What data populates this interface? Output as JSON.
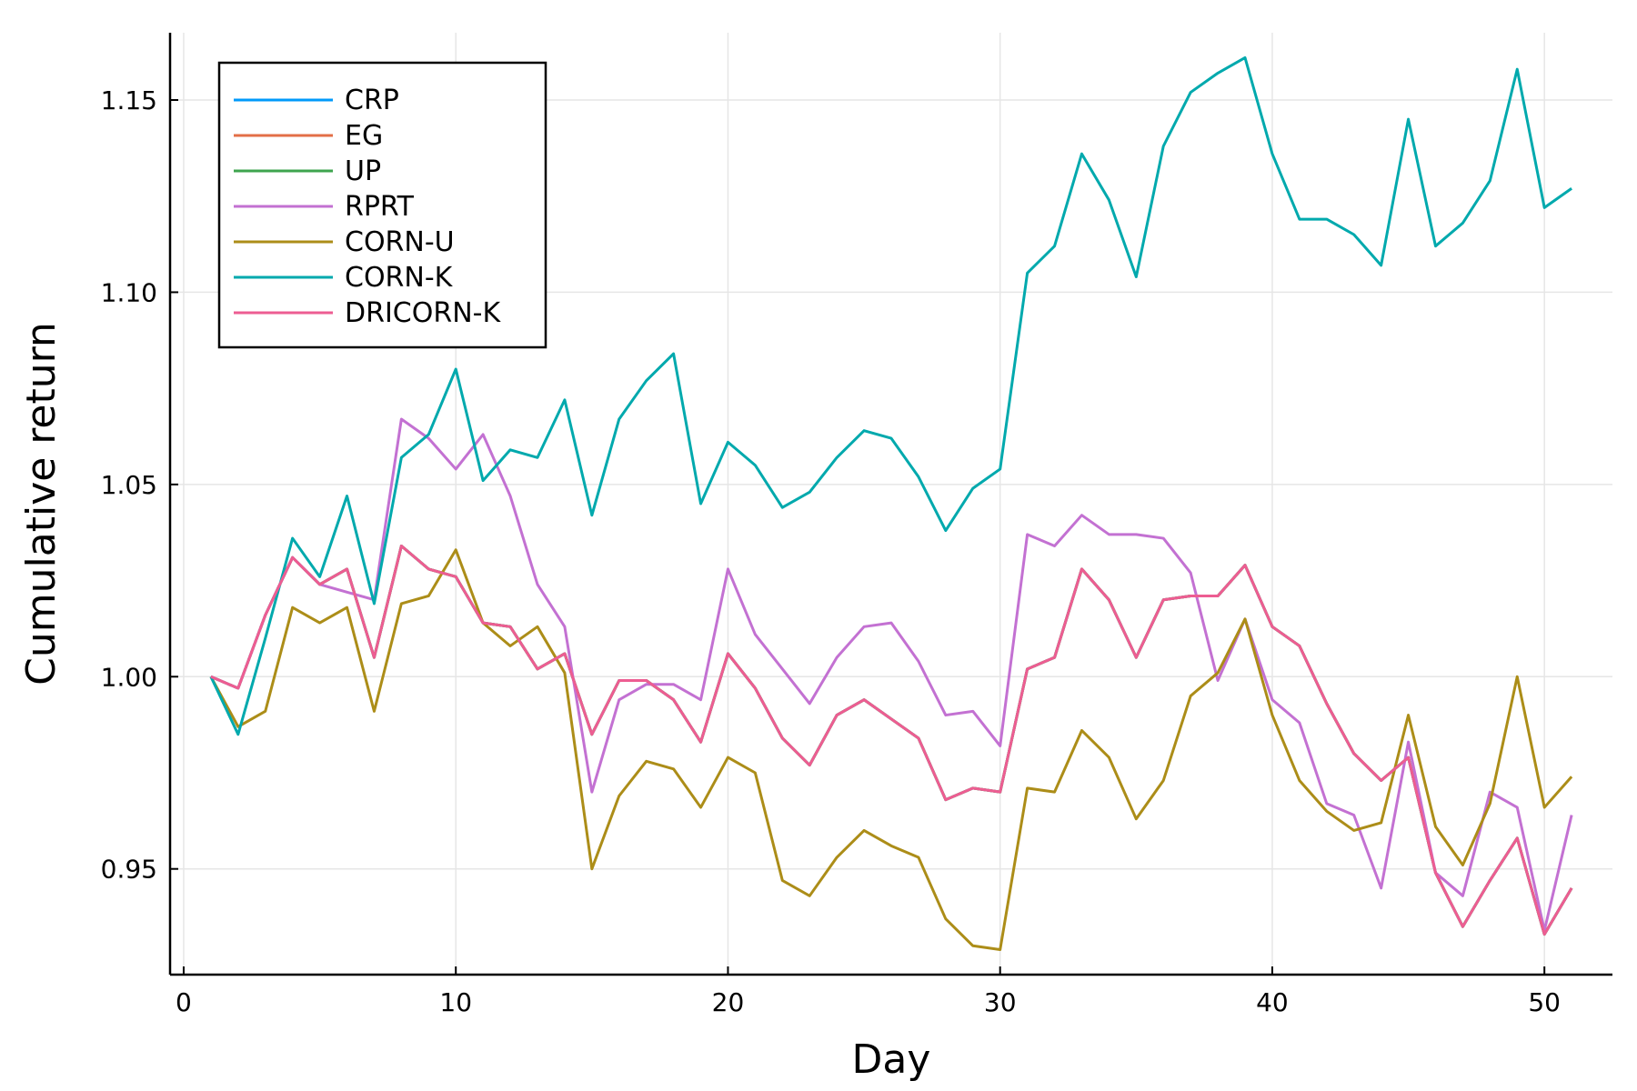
{
  "chart_data": {
    "type": "line",
    "xlabel": "Day",
    "ylabel": "Cumulative return",
    "xlim": [
      -0.5,
      52.5
    ],
    "ylim": [
      0.9225,
      1.1675
    ],
    "xticks": [
      0,
      10,
      20,
      30,
      40,
      50
    ],
    "xtick_labels": [
      "0",
      "10",
      "20",
      "30",
      "40",
      "50"
    ],
    "yticks": [
      0.95,
      1.0,
      1.05,
      1.1,
      1.15
    ],
    "ytick_labels": [
      "0.95",
      "1.00",
      "1.05",
      "1.10",
      "1.15"
    ],
    "grid": true,
    "legend_position": "top-left",
    "x": [
      1,
      2,
      3,
      4,
      5,
      6,
      7,
      8,
      9,
      10,
      11,
      12,
      13,
      14,
      15,
      16,
      17,
      18,
      19,
      20,
      21,
      22,
      23,
      24,
      25,
      26,
      27,
      28,
      29,
      30,
      31,
      32,
      33,
      34,
      35,
      36,
      37,
      38,
      39,
      40,
      41,
      42,
      43,
      44,
      45,
      46,
      47,
      48,
      49,
      50,
      51
    ],
    "series": [
      {
        "name": "CRP",
        "color": "#009AFA",
        "values": [
          1.0,
          0.997,
          1.016,
          1.031,
          1.024,
          1.028,
          1.005,
          1.034,
          1.028,
          1.026,
          1.014,
          1.013,
          1.002,
          1.006,
          0.985,
          0.999,
          0.999,
          0.994,
          0.983,
          1.006,
          0.997,
          0.984,
          0.977,
          0.99,
          0.994,
          0.989,
          0.984,
          0.968,
          0.971,
          0.97,
          1.002,
          1.005,
          1.028,
          1.02,
          1.005,
          1.02,
          1.021,
          1.021,
          1.029,
          1.013,
          1.008,
          0.993,
          0.98,
          0.973,
          0.979,
          0.949,
          0.935,
          0.947,
          0.958,
          0.933,
          0.945
        ]
      },
      {
        "name": "EG",
        "color": "#E36F47",
        "values": [
          1.0,
          0.997,
          1.016,
          1.031,
          1.024,
          1.028,
          1.005,
          1.034,
          1.028,
          1.026,
          1.014,
          1.013,
          1.002,
          1.006,
          0.985,
          0.999,
          0.999,
          0.994,
          0.983,
          1.006,
          0.997,
          0.984,
          0.977,
          0.99,
          0.994,
          0.989,
          0.984,
          0.968,
          0.971,
          0.97,
          1.002,
          1.005,
          1.028,
          1.02,
          1.005,
          1.02,
          1.021,
          1.021,
          1.029,
          1.013,
          1.008,
          0.993,
          0.98,
          0.973,
          0.979,
          0.949,
          0.935,
          0.947,
          0.958,
          0.933,
          0.945
        ]
      },
      {
        "name": "UP",
        "color": "#3EA44E",
        "values": [
          1.0,
          0.997,
          1.016,
          1.031,
          1.024,
          1.028,
          1.005,
          1.034,
          1.028,
          1.026,
          1.014,
          1.013,
          1.002,
          1.006,
          0.985,
          0.999,
          0.999,
          0.994,
          0.983,
          1.006,
          0.997,
          0.984,
          0.977,
          0.99,
          0.994,
          0.989,
          0.984,
          0.968,
          0.971,
          0.97,
          1.002,
          1.005,
          1.028,
          1.02,
          1.005,
          1.02,
          1.021,
          1.021,
          1.029,
          1.013,
          1.008,
          0.993,
          0.98,
          0.973,
          0.979,
          0.949,
          0.935,
          0.947,
          0.958,
          0.933,
          0.945
        ]
      },
      {
        "name": "RPRT",
        "color": "#C371D2",
        "values": [
          1.0,
          0.997,
          1.016,
          1.031,
          1.024,
          1.022,
          1.02,
          1.067,
          1.062,
          1.054,
          1.063,
          1.047,
          1.024,
          1.013,
          0.97,
          0.994,
          0.998,
          0.998,
          0.994,
          1.028,
          1.011,
          1.002,
          0.993,
          1.005,
          1.013,
          1.014,
          1.004,
          0.99,
          0.991,
          0.982,
          1.037,
          1.034,
          1.042,
          1.037,
          1.037,
          1.036,
          1.027,
          0.999,
          1.015,
          0.994,
          0.988,
          0.967,
          0.964,
          0.945,
          0.983,
          0.949,
          0.943,
          0.97,
          0.966,
          0.934,
          0.964
        ]
      },
      {
        "name": "CORN-U",
        "color": "#AC8D18",
        "values": [
          1.0,
          0.987,
          0.991,
          1.018,
          1.014,
          1.018,
          0.991,
          1.019,
          1.021,
          1.033,
          1.014,
          1.008,
          1.013,
          1.001,
          0.95,
          0.969,
          0.978,
          0.976,
          0.966,
          0.979,
          0.975,
          0.947,
          0.943,
          0.953,
          0.96,
          0.956,
          0.953,
          0.937,
          0.93,
          0.929,
          0.971,
          0.97,
          0.986,
          0.979,
          0.963,
          0.973,
          0.995,
          1.001,
          1.015,
          0.99,
          0.973,
          0.965,
          0.96,
          0.962,
          0.99,
          0.961,
          0.951,
          0.967,
          1.0,
          0.966,
          0.974
        ]
      },
      {
        "name": "CORN-K",
        "color": "#00A9AD",
        "values": [
          1.0,
          0.985,
          1.01,
          1.036,
          1.026,
          1.047,
          1.019,
          1.057,
          1.063,
          1.08,
          1.051,
          1.059,
          1.057,
          1.072,
          1.042,
          1.067,
          1.077,
          1.084,
          1.045,
          1.061,
          1.055,
          1.044,
          1.048,
          1.057,
          1.064,
          1.062,
          1.052,
          1.038,
          1.049,
          1.054,
          1.105,
          1.112,
          1.136,
          1.124,
          1.104,
          1.138,
          1.152,
          1.157,
          1.161,
          1.136,
          1.119,
          1.119,
          1.115,
          1.107,
          1.145,
          1.112,
          1.118,
          1.129,
          1.158,
          1.122,
          1.127
        ]
      },
      {
        "name": "DRICORN-K",
        "color": "#ED5D92",
        "values": [
          1.0,
          0.997,
          1.016,
          1.031,
          1.024,
          1.028,
          1.005,
          1.034,
          1.028,
          1.026,
          1.014,
          1.013,
          1.002,
          1.006,
          0.985,
          0.999,
          0.999,
          0.994,
          0.983,
          1.006,
          0.997,
          0.984,
          0.977,
          0.99,
          0.994,
          0.989,
          0.984,
          0.968,
          0.971,
          0.97,
          1.002,
          1.005,
          1.028,
          1.02,
          1.005,
          1.02,
          1.021,
          1.021,
          1.029,
          1.013,
          1.008,
          0.993,
          0.98,
          0.973,
          0.979,
          0.949,
          0.935,
          0.947,
          0.958,
          0.933,
          0.945
        ]
      }
    ]
  }
}
